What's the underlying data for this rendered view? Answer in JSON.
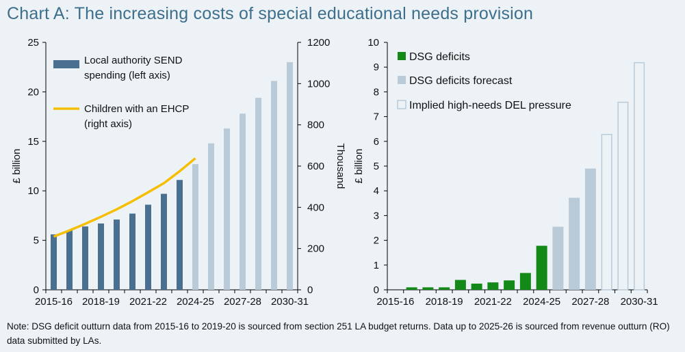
{
  "header": {
    "title": "Chart A: The increasing costs of special educational needs provision"
  },
  "footer": {
    "note": "Note: DSG deficit outturn data from 2015-16 to 2019-20 is sourced from section 251 LA budget returns. Data up to 2025-26 is sourced from revenue outturn (RO) data submitted by LAs."
  },
  "colors": {
    "background": "#ecf2f6",
    "title": "#3d6f8c",
    "send_actual": "#4a6f8f",
    "send_forecast": "#b9cad8",
    "ehcp_line": "#f6be00",
    "dsg_actual": "#138a18",
    "dsg_forecast": "#b9cad8",
    "del_outline": "#b9cad8",
    "axis": "#000000"
  },
  "chart_data": [
    {
      "type": "bar",
      "subtype": "bar-with-line-secondary-axis",
      "years": [
        "2015-16",
        "2016-17",
        "2017-18",
        "2018-19",
        "2019-20",
        "2020-21",
        "2021-22",
        "2022-23",
        "2023-24",
        "2024-25",
        "2025-26",
        "2026-27",
        "2027-28",
        "2028-29",
        "2029-30",
        "2030-31"
      ],
      "x_tick_labels": [
        "2015-16",
        "2018-19",
        "2021-22",
        "2024-25",
        "2027-28",
        "2030-31"
      ],
      "series": [
        {
          "name": "Local authority SEND spending (left axis)",
          "axis": "left",
          "values": [
            5.6,
            6.0,
            6.4,
            6.7,
            7.1,
            7.7,
            8.6,
            9.7,
            11.1,
            12.7,
            14.8,
            16.3,
            17.8,
            19.4,
            21.1,
            23.0
          ],
          "forecast_from_index": 9
        },
        {
          "name": "Children with an EHCP (right axis)",
          "axis": "right",
          "type": "line",
          "values": [
            258,
            288,
            320,
            354,
            390,
            430,
            473,
            517,
            575,
            638
          ]
        }
      ],
      "legend": [
        "Local authority SEND spending (left axis)",
        "Children with an EHCP (right axis)"
      ],
      "ylabel": "£ billion",
      "y2label": "Thousand",
      "ylim": [
        0,
        25
      ],
      "y_ticks": [
        "0",
        "5",
        "10",
        "15",
        "20",
        "25"
      ],
      "y2lim": [
        0,
        1200
      ],
      "y2_ticks": [
        "0",
        "200",
        "400",
        "600",
        "800",
        "1000",
        "1200"
      ]
    },
    {
      "type": "bar",
      "years": [
        "2015-16",
        "2016-17",
        "2017-18",
        "2018-19",
        "2019-20",
        "2020-21",
        "2021-22",
        "2022-23",
        "2023-24",
        "2024-25",
        "2025-26",
        "2026-27",
        "2027-28",
        "2028-29",
        "2029-30",
        "2030-31"
      ],
      "x_tick_labels": [
        "2015-16",
        "2018-19",
        "2021-22",
        "2024-25",
        "2027-28",
        "2030-31"
      ],
      "series": [
        {
          "name": "DSG deficits",
          "values": [
            0,
            0.1,
            0.1,
            0.1,
            0.4,
            0.25,
            0.3,
            0.38,
            0.68,
            1.78
          ]
        },
        {
          "name": "DSG deficits forecast",
          "values": [
            null,
            null,
            null,
            null,
            null,
            null,
            null,
            null,
            null,
            null,
            2.55,
            3.72,
            4.9
          ]
        },
        {
          "name": "Implied high-needs DEL pressure",
          "values": [
            null,
            null,
            null,
            null,
            null,
            null,
            null,
            null,
            null,
            null,
            null,
            null,
            null,
            6.3,
            7.6,
            9.2
          ]
        }
      ],
      "legend": [
        "DSG deficits",
        "DSG deficits forecast",
        "Implied high-needs DEL pressure"
      ],
      "ylabel": "£ billion",
      "ylim": [
        0,
        10
      ],
      "y_ticks": [
        "0",
        "1",
        "2",
        "3",
        "4",
        "5",
        "6",
        "7",
        "8",
        "9",
        "10"
      ]
    }
  ]
}
